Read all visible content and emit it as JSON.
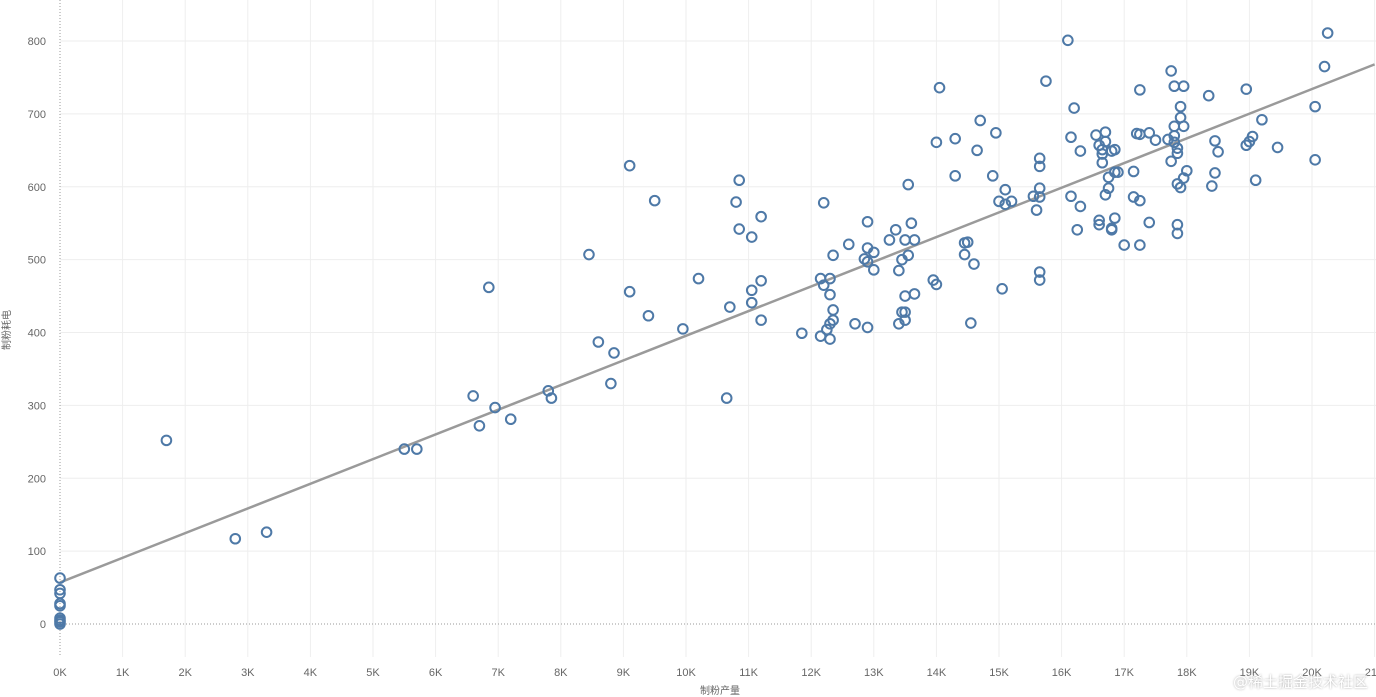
{
  "chart_data": {
    "type": "scatter",
    "xlabel": "制粉产量",
    "ylabel": "制粉耗电",
    "x_tick_labels": [
      "0K",
      "1K",
      "2K",
      "3K",
      "4K",
      "5K",
      "6K",
      "7K",
      "8K",
      "9K",
      "10K",
      "11K",
      "12K",
      "13K",
      "14K",
      "15K",
      "16K",
      "17K",
      "18K",
      "19K",
      "20K",
      "21K"
    ],
    "y_tick_labels": [
      "0",
      "100",
      "200",
      "300",
      "400",
      "500",
      "600",
      "700",
      "800"
    ],
    "xlim": [
      0,
      21000
    ],
    "ylim": [
      -45,
      840
    ],
    "grid": true,
    "trendline": {
      "x0": 0,
      "y0": 57,
      "x1": 21000,
      "y1": 768
    },
    "points": [
      [
        0,
        0
      ],
      [
        0,
        3
      ],
      [
        0,
        5
      ],
      [
        0,
        8
      ],
      [
        0,
        25
      ],
      [
        0,
        28
      ],
      [
        0,
        42
      ],
      [
        0,
        47
      ],
      [
        0,
        63
      ],
      [
        1700,
        252
      ],
      [
        2800,
        117
      ],
      [
        3300,
        126
      ],
      [
        5500,
        240
      ],
      [
        5700,
        240
      ],
      [
        6600,
        313
      ],
      [
        6700,
        272
      ],
      [
        6850,
        462
      ],
      [
        6950,
        297
      ],
      [
        7200,
        281
      ],
      [
        7800,
        320
      ],
      [
        7850,
        310
      ],
      [
        8450,
        507
      ],
      [
        8600,
        387
      ],
      [
        8800,
        330
      ],
      [
        8850,
        372
      ],
      [
        9100,
        456
      ],
      [
        9100,
        629
      ],
      [
        9400,
        423
      ],
      [
        9500,
        581
      ],
      [
        9950,
        405
      ],
      [
        10200,
        474
      ],
      [
        10650,
        310
      ],
      [
        10700,
        435
      ],
      [
        10800,
        579
      ],
      [
        10850,
        542
      ],
      [
        10850,
        609
      ],
      [
        11050,
        531
      ],
      [
        11050,
        458
      ],
      [
        11050,
        441
      ],
      [
        11200,
        559
      ],
      [
        11200,
        471
      ],
      [
        11200,
        417
      ],
      [
        11850,
        399
      ],
      [
        12150,
        395
      ],
      [
        12150,
        474
      ],
      [
        12200,
        465
      ],
      [
        12200,
        578
      ],
      [
        12250,
        404
      ],
      [
        12300,
        391
      ],
      [
        12300,
        412
      ],
      [
        12300,
        452
      ],
      [
        12300,
        474
      ],
      [
        12350,
        431
      ],
      [
        12350,
        417
      ],
      [
        12350,
        506
      ],
      [
        12600,
        521
      ],
      [
        12700,
        412
      ],
      [
        12850,
        501
      ],
      [
        12900,
        407
      ],
      [
        12900,
        497
      ],
      [
        12900,
        516
      ],
      [
        12900,
        552
      ],
      [
        13000,
        486
      ],
      [
        13000,
        510
      ],
      [
        13250,
        527
      ],
      [
        13350,
        541
      ],
      [
        13400,
        485
      ],
      [
        13400,
        412
      ],
      [
        13450,
        428
      ],
      [
        13450,
        500
      ],
      [
        13500,
        450
      ],
      [
        13500,
        417
      ],
      [
        13500,
        527
      ],
      [
        13500,
        428
      ],
      [
        13550,
        506
      ],
      [
        13550,
        603
      ],
      [
        13600,
        550
      ],
      [
        13650,
        527
      ],
      [
        13650,
        453
      ],
      [
        13950,
        472
      ],
      [
        14000,
        466
      ],
      [
        14000,
        661
      ],
      [
        14050,
        736
      ],
      [
        14300,
        666
      ],
      [
        14300,
        615
      ],
      [
        14450,
        507
      ],
      [
        14450,
        523
      ],
      [
        14500,
        524
      ],
      [
        14550,
        413
      ],
      [
        14600,
        494
      ],
      [
        14650,
        650
      ],
      [
        14700,
        691
      ],
      [
        14900,
        615
      ],
      [
        14950,
        674
      ],
      [
        15000,
        580
      ],
      [
        15050,
        460
      ],
      [
        15100,
        596
      ],
      [
        15100,
        576
      ],
      [
        15200,
        580
      ],
      [
        15550,
        587
      ],
      [
        15600,
        568
      ],
      [
        15650,
        639
      ],
      [
        15650,
        598
      ],
      [
        15650,
        628
      ],
      [
        15650,
        586
      ],
      [
        15650,
        483
      ],
      [
        15650,
        472
      ],
      [
        15750,
        745
      ],
      [
        16100,
        801
      ],
      [
        16150,
        668
      ],
      [
        16150,
        587
      ],
      [
        16200,
        708
      ],
      [
        16250,
        541
      ],
      [
        16300,
        649
      ],
      [
        16300,
        573
      ],
      [
        16550,
        671
      ],
      [
        16600,
        554
      ],
      [
        16600,
        548
      ],
      [
        16600,
        657
      ],
      [
        16650,
        645
      ],
      [
        16650,
        633
      ],
      [
        16650,
        651
      ],
      [
        16700,
        662
      ],
      [
        16700,
        675
      ],
      [
        16700,
        589
      ],
      [
        16750,
        613
      ],
      [
        16750,
        598
      ],
      [
        16800,
        649
      ],
      [
        16800,
        541
      ],
      [
        16800,
        543
      ],
      [
        16850,
        557
      ],
      [
        16850,
        651
      ],
      [
        16850,
        620
      ],
      [
        16900,
        620
      ],
      [
        17000,
        520
      ],
      [
        17150,
        586
      ],
      [
        17150,
        621
      ],
      [
        17200,
        673
      ],
      [
        17250,
        581
      ],
      [
        17250,
        672
      ],
      [
        17250,
        520
      ],
      [
        17250,
        733
      ],
      [
        17400,
        674
      ],
      [
        17400,
        551
      ],
      [
        17500,
        664
      ],
      [
        17700,
        665
      ],
      [
        17750,
        635
      ],
      [
        17750,
        759
      ],
      [
        17800,
        738
      ],
      [
        17800,
        683
      ],
      [
        17800,
        670
      ],
      [
        17800,
        661
      ],
      [
        17850,
        653
      ],
      [
        17850,
        646
      ],
      [
        17850,
        548
      ],
      [
        17850,
        536
      ],
      [
        17850,
        604
      ],
      [
        17900,
        599
      ],
      [
        17900,
        710
      ],
      [
        17900,
        695
      ],
      [
        17950,
        612
      ],
      [
        17950,
        683
      ],
      [
        17950,
        738
      ],
      [
        18000,
        622
      ],
      [
        18350,
        725
      ],
      [
        18400,
        601
      ],
      [
        18450,
        663
      ],
      [
        18450,
        619
      ],
      [
        18500,
        648
      ],
      [
        18950,
        734
      ],
      [
        18950,
        657
      ],
      [
        19000,
        662
      ],
      [
        19050,
        669
      ],
      [
        19100,
        609
      ],
      [
        19200,
        692
      ],
      [
        19450,
        654
      ],
      [
        20050,
        637
      ],
      [
        20050,
        710
      ],
      [
        20200,
        765
      ],
      [
        20250,
        811
      ]
    ]
  },
  "watermark": "@稀土掘金技术社区"
}
